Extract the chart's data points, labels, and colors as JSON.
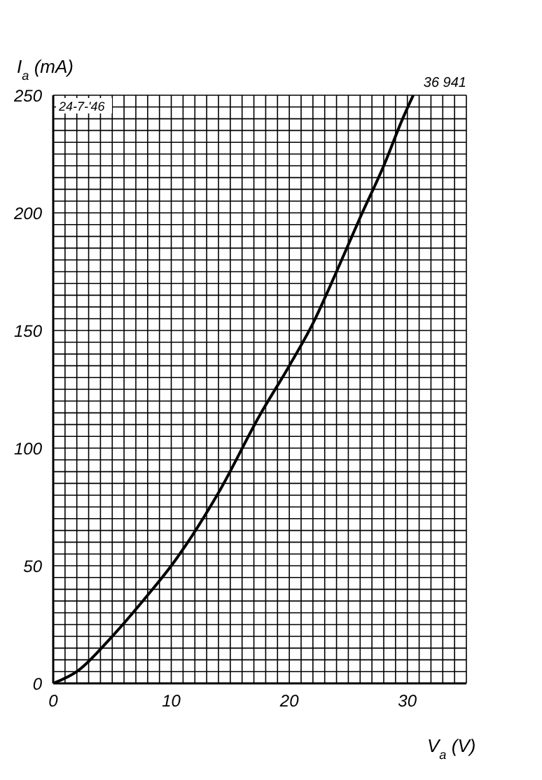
{
  "chart_data": {
    "type": "line",
    "xlabel": "V$_{a}$(V)",
    "ylabel": "I$_{a}$(mA)",
    "annotations": [
      "36 941",
      "24-7-'46"
    ],
    "x": [
      0,
      2,
      5,
      8,
      10,
      14,
      17.5,
      20,
      22,
      24,
      26,
      28,
      29.6,
      30.5
    ],
    "series": [
      {
        "color": "#000000",
        "values": [
          0,
          5,
          20,
          37.5,
          50,
          81,
          114,
          135,
          153,
          175,
          198,
          220,
          240,
          250
        ]
      }
    ],
    "xlim": [
      0,
      35
    ],
    "xticks": [
      0,
      {
        "value": 1,
        "label": null
      },
      {
        "value": 2,
        "label": null
      },
      {
        "value": 3,
        "label": null
      },
      {
        "value": 4,
        "label": null
      },
      {
        "value": 5,
        "label": null
      },
      {
        "value": 6,
        "label": null
      },
      {
        "value": 7,
        "label": null
      },
      {
        "value": 8,
        "label": null
      },
      {
        "value": 9,
        "label": null
      },
      10,
      {
        "value": 11,
        "label": null
      },
      {
        "value": 12,
        "label": null
      },
      {
        "value": 13,
        "label": null
      },
      {
        "value": 14,
        "label": null
      },
      {
        "value": 15,
        "label": null
      },
      {
        "value": 16,
        "label": null
      },
      {
        "value": 17,
        "label": null
      },
      {
        "value": 18,
        "label": null
      },
      {
        "value": 19,
        "label": null
      },
      20,
      {
        "value": 21,
        "label": null
      },
      {
        "value": 22,
        "label": null
      },
      {
        "value": 23,
        "label": null
      },
      {
        "value": 24,
        "label": null
      },
      {
        "value": 25,
        "label": null
      },
      {
        "value": 26,
        "label": null
      },
      {
        "value": 27,
        "label": null
      },
      {
        "value": 28,
        "label": null
      },
      {
        "value": 29,
        "label": null
      },
      30,
      {
        "value": 31,
        "label": null
      },
      {
        "value": 32,
        "label": null
      },
      {
        "value": 33,
        "label": null
      },
      {
        "value": 34,
        "label": null
      },
      {
        "value": 35,
        "label": null
      }
    ],
    "ylim": [
      0,
      250
    ],
    "yticks": [
      0,
      {
        "value": 5,
        "label": null
      },
      {
        "value": 10,
        "label": null
      },
      {
        "value": 15,
        "label": null
      },
      {
        "value": 20,
        "label": null
      },
      {
        "value": 25,
        "label": null
      },
      {
        "value": 30,
        "label": null
      },
      {
        "value": 35,
        "label": null
      },
      {
        "value": 40,
        "label": null
      },
      {
        "value": 45,
        "label": null
      },
      50,
      {
        "value": 55,
        "label": null
      },
      {
        "value": 60,
        "label": null
      },
      {
        "value": 65,
        "label": null
      },
      {
        "value": 70,
        "label": null
      },
      {
        "value": 75,
        "label": null
      },
      {
        "value": 80,
        "label": null
      },
      {
        "value": 85,
        "label": null
      },
      {
        "value": 90,
        "label": null
      },
      {
        "value": 95,
        "label": null
      },
      100,
      {
        "value": 105,
        "label": null
      },
      {
        "value": 110,
        "label": null
      },
      {
        "value": 115,
        "label": null
      },
      {
        "value": 120,
        "label": null
      },
      {
        "value": 125,
        "label": null
      },
      {
        "value": 130,
        "label": null
      },
      {
        "value": 135,
        "label": null
      },
      {
        "value": 140,
        "label": null
      },
      {
        "value": 145,
        "label": null
      },
      150,
      {
        "value": 155,
        "label": null
      },
      {
        "value": 160,
        "label": null
      },
      {
        "value": 165,
        "label": null
      },
      {
        "value": 170,
        "label": null
      },
      {
        "value": 175,
        "label": null
      },
      {
        "value": 180,
        "label": null
      },
      {
        "value": 185,
        "label": null
      },
      {
        "value": 190,
        "label": null
      },
      {
        "value": 195,
        "label": null
      },
      200,
      {
        "value": 205,
        "label": null
      },
      {
        "value": 210,
        "label": null
      },
      {
        "value": 215,
        "label": null
      },
      {
        "value": 220,
        "label": null
      },
      {
        "value": 225,
        "label": null
      },
      {
        "value": 230,
        "label": null
      },
      {
        "value": 235,
        "label": null
      },
      {
        "value": 240,
        "label": null
      },
      {
        "value": 245,
        "label": null
      },
      250
    ],
    "grid": true,
    "marker": "none",
    "line_style": "solid"
  }
}
